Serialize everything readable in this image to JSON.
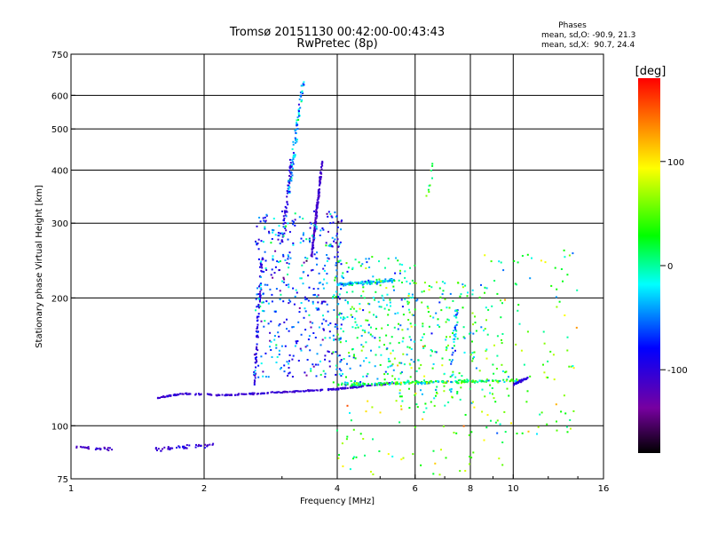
{
  "chart_data": {
    "type": "scatter",
    "title": "Tromsø 20151130 00:42:00-00:43:43",
    "subtitle": "RwPretec (8p)",
    "xlabel": "Frequency [MHz]",
    "ylabel": "Stationary phase Virtual Height [km]",
    "x_scale": "log",
    "y_scale": "log",
    "xlim": [
      1,
      16
    ],
    "ylim": [
      75,
      750
    ],
    "x_ticks": [
      1,
      2,
      4,
      6,
      8,
      10,
      16
    ],
    "x_tick_labels": [
      "1",
      "2",
      "4",
      "6",
      "8",
      "10",
      "16"
    ],
    "x_grid": [
      2,
      4,
      6,
      8,
      10
    ],
    "y_ticks": [
      75,
      100,
      200,
      300,
      400,
      500,
      600,
      750
    ],
    "y_tick_labels": [
      "75",
      "100",
      "200",
      "300",
      "400",
      "500",
      "600",
      "750"
    ],
    "y_grid": [
      100,
      200,
      300,
      400,
      500,
      600
    ],
    "grid": true,
    "phases_box": {
      "title": "Phases",
      "line1": "mean, sd,O: -90.9, 21.3",
      "line2": "mean, sd,X:  90.7, 24.4"
    },
    "colorbar": {
      "label": "[deg]",
      "range": [
        -180,
        180
      ],
      "ticks": [
        100,
        0,
        -100
      ],
      "tick_labels": [
        "100",
        "0",
        "-100"
      ],
      "colormap": [
        "#000000",
        "#7700a0",
        "#0000ff",
        "#00ffff",
        "#00ff00",
        "#ffff00",
        "#ff0000"
      ]
    },
    "traces": [
      {
        "x": [
          1.0,
          1.25
        ],
        "y": [
          89,
          88
        ],
        "spread": 0.012,
        "n": 25,
        "phase": -110,
        "jitter": 25
      },
      {
        "x": [
          1.55,
          2.1
        ],
        "y": [
          88,
          90
        ],
        "spread": 0.015,
        "n": 45,
        "phase": -100,
        "jitter": 30
      },
      {
        "x": [
          1.55,
          1.8,
          2.2,
          2.6,
          3.0,
          3.5,
          4.0,
          4.6,
          5.4
        ],
        "y": [
          116,
          119,
          118,
          119,
          120,
          121,
          122,
          124,
          126
        ],
        "spread": 0.005,
        "n": 260,
        "phase": -105,
        "jitter": 20
      },
      {
        "x": [
          2.6,
          2.7
        ],
        "y": [
          125,
          250
        ],
        "spread": 0.015,
        "n": 80,
        "phase": -95,
        "jitter": 35
      },
      {
        "x": [
          3.0,
          3.15
        ],
        "y": [
          270,
          420
        ],
        "spread": 0.02,
        "n": 50,
        "phase": -100,
        "jitter": 30
      },
      {
        "x": [
          3.1,
          3.35
        ],
        "y": [
          350,
          650
        ],
        "spread": 0.02,
        "n": 80,
        "phase": -40,
        "jitter": 80
      },
      {
        "x": [
          3.5,
          3.7
        ],
        "y": [
          250,
          420
        ],
        "spread": 0.01,
        "n": 140,
        "phase": -110,
        "jitter": 20
      },
      {
        "x": [
          4.0,
          5.4
        ],
        "y": [
          215,
          220
        ],
        "spread": 0.012,
        "n": 110,
        "phase": -30,
        "jitter": 70
      },
      {
        "x": [
          4.0,
          10.5
        ],
        "y": [
          125,
          128
        ],
        "spread": 0.012,
        "n": 220,
        "phase": 20,
        "jitter": 110
      },
      {
        "x": [
          6.4,
          6.6
        ],
        "y": [
          350,
          420
        ],
        "spread": 0.03,
        "n": 10,
        "phase": 40,
        "jitter": 90
      },
      {
        "x": [
          7.2,
          7.5
        ],
        "y": [
          120,
          200
        ],
        "spread": 0.02,
        "n": 40,
        "phase": -30,
        "jitter": 90
      },
      {
        "x": [
          10.0,
          10.8
        ],
        "y": [
          125,
          130
        ],
        "spread": 0.01,
        "n": 35,
        "phase": -100,
        "jitter": 30
      }
    ],
    "scatter_regions": [
      {
        "xlim": [
          2.6,
          4.1
        ],
        "ylim": [
          130,
          320
        ],
        "n": 420,
        "phase": -60,
        "jitter": 110
      },
      {
        "xlim": [
          3.9,
          6.0
        ],
        "ylim": [
          125,
          250
        ],
        "n": 240,
        "phase": 0,
        "jitter": 120
      },
      {
        "xlim": [
          5.5,
          9.0
        ],
        "ylim": [
          110,
          220
        ],
        "n": 200,
        "phase": 20,
        "jitter": 120
      },
      {
        "xlim": [
          8.5,
          14.0
        ],
        "ylim": [
          95,
          260
        ],
        "n": 110,
        "phase": 30,
        "jitter": 120
      },
      {
        "xlim": [
          4.0,
          10.0
        ],
        "ylim": [
          76,
          115
        ],
        "n": 70,
        "phase": 60,
        "jitter": 110
      }
    ]
  }
}
